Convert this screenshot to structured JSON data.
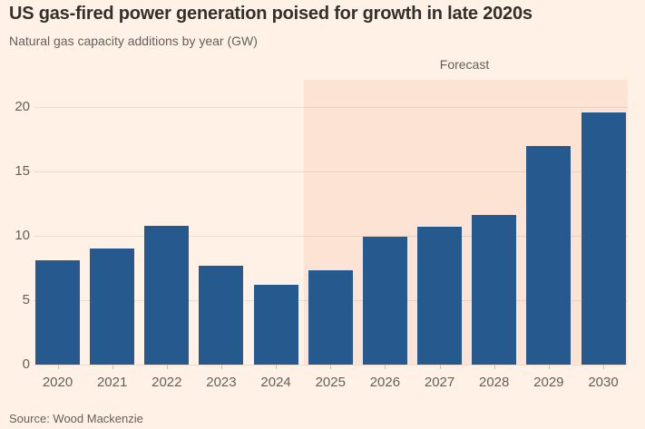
{
  "header": {
    "title": "US gas-fired power generation poised for growth in late 2020s",
    "subtitle": "Natural gas capacity additions by year (GW)"
  },
  "source": "Source: Wood Mackenzie",
  "chart_data": {
    "type": "bar",
    "title": "US gas-fired power generation poised for growth in late 2020s",
    "subtitle": "Natural gas capacity additions by year (GW)",
    "categories": [
      "2020",
      "2021",
      "2022",
      "2023",
      "2024",
      "2025",
      "2026",
      "2027",
      "2028",
      "2029",
      "2030"
    ],
    "values": [
      8.1,
      9.0,
      10.8,
      7.7,
      6.2,
      7.3,
      9.9,
      10.7,
      11.6,
      17.0,
      19.6
    ],
    "xlabel": "",
    "ylabel": "GW",
    "ylim": [
      0,
      20
    ],
    "yticks": [
      0,
      5,
      10,
      15,
      20
    ],
    "grid": "horizontal",
    "legend": "none",
    "forecast": {
      "label": "Forecast",
      "start_category": "2025",
      "end_category": "2030"
    },
    "colors": {
      "bar": "#26598E",
      "background": "#FFF1E5",
      "forecast_region": "#FDE3D3",
      "title_text": "#33302C",
      "muted_text": "#66605B",
      "gridline": "rgba(102,96,91,0.14)"
    }
  }
}
